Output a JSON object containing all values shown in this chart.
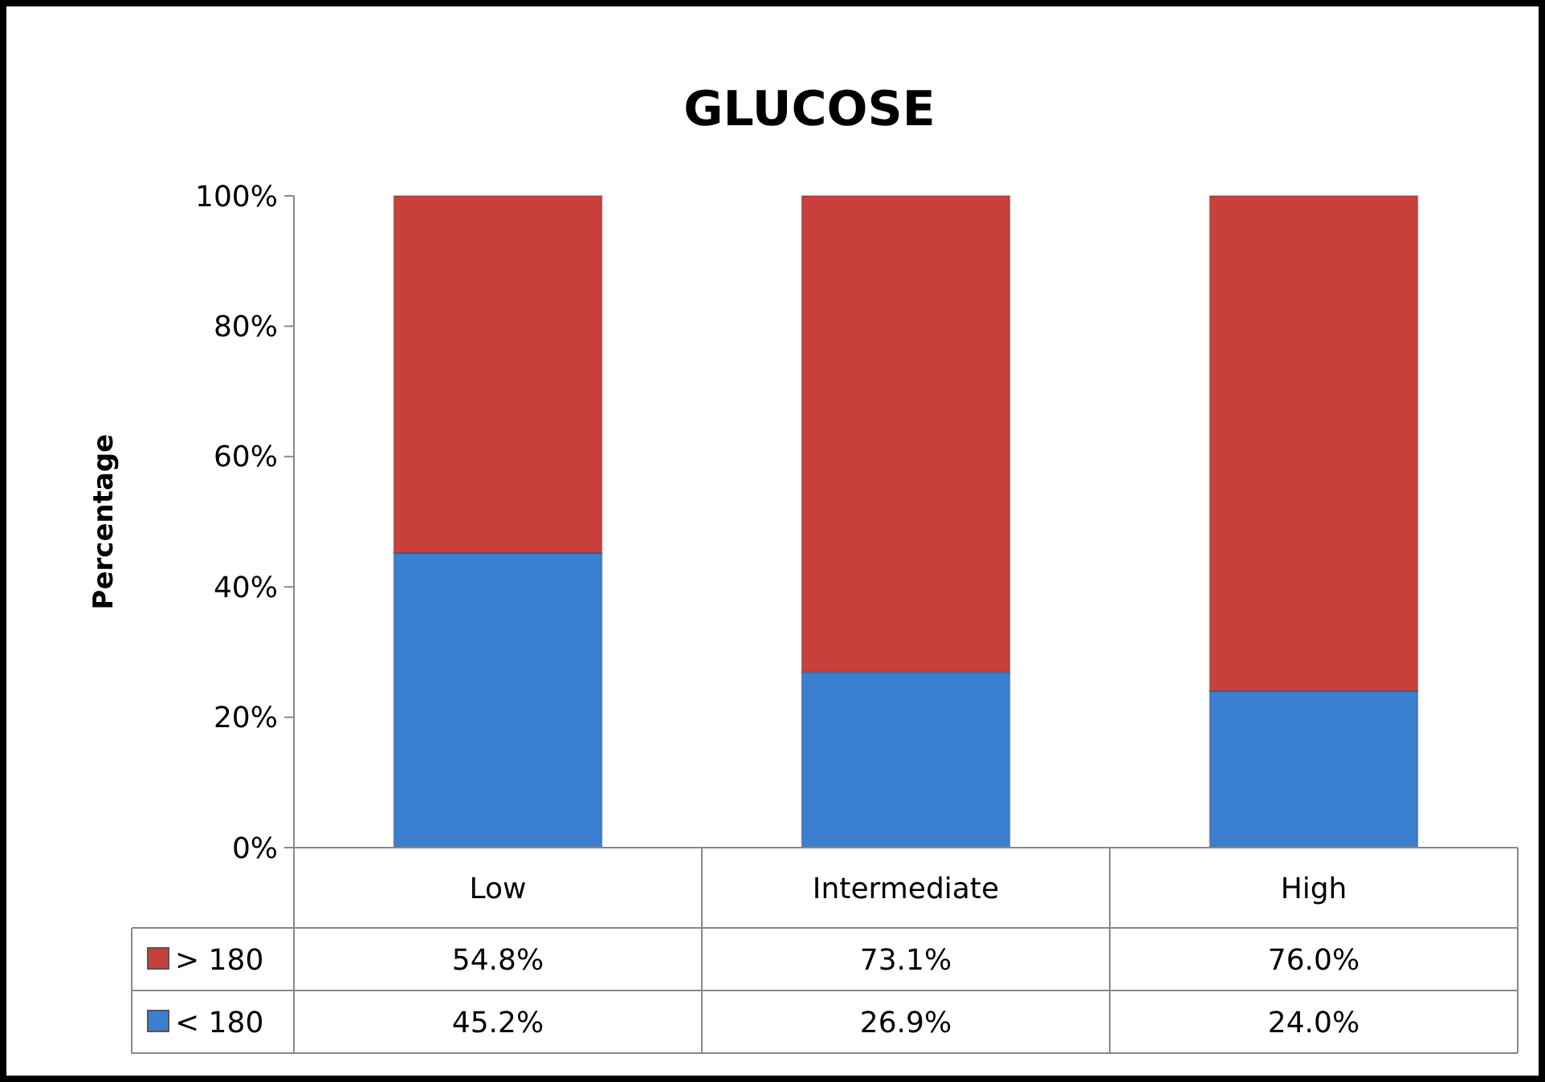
{
  "chart_data": {
    "type": "bar",
    "title": "GLUCOSE",
    "ylabel": "Percentage",
    "categories": [
      "Low",
      "Intermediate",
      "High"
    ],
    "stacked": true,
    "legend": "bottom",
    "ylim": [
      0,
      100
    ],
    "yticks": [
      {
        "value": 0,
        "label": "0%"
      },
      {
        "value": 20,
        "label": "20%"
      },
      {
        "value": 40,
        "label": "40%"
      },
      {
        "value": 60,
        "label": "60%"
      },
      {
        "value": 80,
        "label": "80%"
      },
      {
        "value": 100,
        "label": "100%"
      }
    ],
    "grid": false,
    "series": [
      {
        "name": "< 180",
        "color": "#3a7fd0",
        "values": [
          45.2,
          26.9,
          24.0
        ],
        "value_labels": [
          "45.2%",
          "26.9%",
          "24.0%"
        ]
      },
      {
        "name": "> 180",
        "color": "#c93f3b",
        "values": [
          54.8,
          73.1,
          76.0
        ],
        "value_labels": [
          "54.8%",
          "73.1%",
          "76.0%"
        ]
      }
    ]
  }
}
